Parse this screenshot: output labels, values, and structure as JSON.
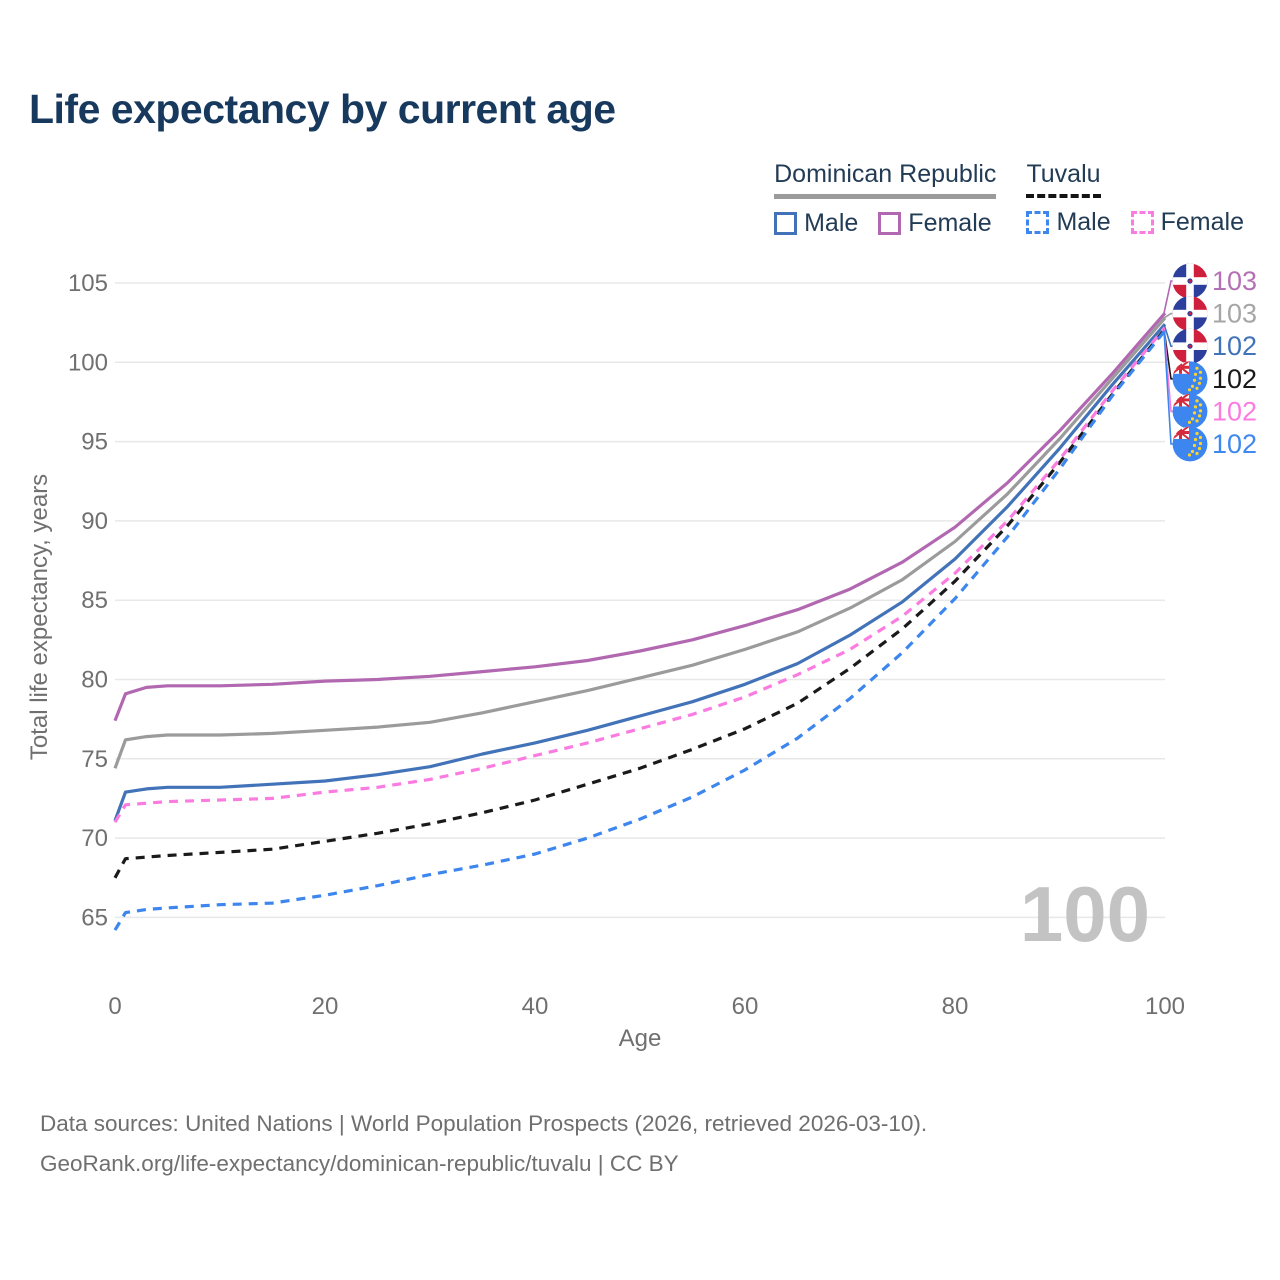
{
  "title": "Life expectancy by current age",
  "legend": {
    "groups": [
      {
        "country": "Dominican Republic",
        "line_style": "solid",
        "underline_color": "#9b9b9b",
        "items": [
          {
            "label": "Male",
            "color": "#4273b8"
          },
          {
            "label": "Female",
            "color": "#b168b1"
          }
        ]
      },
      {
        "country": "Tuvalu",
        "line_style": "dashed",
        "underline_color": "#141414",
        "items": [
          {
            "label": "Male",
            "color": "#3c86ee"
          },
          {
            "label": "Female",
            "color": "#fb7ce1"
          }
        ]
      }
    ]
  },
  "footer": {
    "line1": "Data sources: United Nations | World Population Prospects (2026, retrieved 2026-03-10).",
    "line2": "GeoRank.org/life-expectancy/dominican-republic/tuvalu | CC BY"
  },
  "chart_data": {
    "type": "line",
    "title": "Life expectancy by current age",
    "xlabel": "Age",
    "ylabel": "Total life expectancy, years",
    "xlim": [
      0,
      100
    ],
    "ylim": [
      65,
      105
    ],
    "xticks": [
      0,
      20,
      40,
      60,
      80,
      100
    ],
    "yticks": [
      65,
      70,
      75,
      80,
      85,
      90,
      95,
      100,
      105
    ],
    "grid": "horizontal",
    "legend_position": "top-right",
    "watermark": "100",
    "ages": [
      0,
      1,
      3,
      5,
      10,
      15,
      20,
      25,
      30,
      35,
      40,
      45,
      50,
      55,
      60,
      65,
      70,
      75,
      80,
      85,
      90,
      95,
      100
    ],
    "series": [
      {
        "name": "Dominican Republic Female",
        "color": "#b168b1",
        "dashed": false,
        "flag": "dominican-republic",
        "end_label": "103",
        "label_color": "#b470b4",
        "values": [
          77.4,
          79.1,
          79.5,
          79.6,
          79.6,
          79.7,
          79.9,
          80.0,
          80.2,
          80.5,
          80.8,
          81.2,
          81.8,
          82.5,
          83.4,
          84.4,
          85.7,
          87.4,
          89.6,
          92.4,
          95.7,
          99.3,
          103.1
        ]
      },
      {
        "name": "Dominican Republic Both sexes",
        "color": "#9b9b9b",
        "dashed": false,
        "flag": "dominican-republic",
        "end_label": "103",
        "label_color": "#a6a6a6",
        "values": [
          74.4,
          76.2,
          76.4,
          76.5,
          76.5,
          76.6,
          76.8,
          77.0,
          77.3,
          77.9,
          78.6,
          79.3,
          80.1,
          80.9,
          81.9,
          83.0,
          84.5,
          86.3,
          88.7,
          91.7,
          95.2,
          99.0,
          102.8
        ]
      },
      {
        "name": "Dominican Republic Male",
        "color": "#4273b8",
        "dashed": false,
        "flag": "dominican-republic",
        "end_label": "102",
        "label_color": "#4273b8",
        "values": [
          71.1,
          72.9,
          73.1,
          73.2,
          73.2,
          73.4,
          73.6,
          74.0,
          74.5,
          75.3,
          76.0,
          76.8,
          77.7,
          78.6,
          79.7,
          81.0,
          82.8,
          84.9,
          87.6,
          90.9,
          94.6,
          98.6,
          102.4
        ]
      },
      {
        "name": "Tuvalu Both sexes",
        "color": "#1a1a1a",
        "dashed": true,
        "flag": "tuvalu",
        "end_label": "102",
        "label_color": "#1a1a1a",
        "values": [
          67.5,
          68.7,
          68.8,
          68.9,
          69.1,
          69.3,
          69.8,
          70.3,
          70.9,
          71.6,
          72.4,
          73.4,
          74.4,
          75.6,
          76.9,
          78.5,
          80.7,
          83.2,
          86.2,
          89.7,
          93.7,
          98.0,
          102.1
        ]
      },
      {
        "name": "Tuvalu Female",
        "color": "#fb7ce1",
        "dashed": true,
        "flag": "tuvalu",
        "end_label": "102",
        "label_color": "#fb7ce1",
        "values": [
          71.0,
          72.1,
          72.2,
          72.3,
          72.4,
          72.5,
          72.9,
          73.2,
          73.7,
          74.4,
          75.2,
          76.0,
          76.9,
          77.8,
          78.9,
          80.3,
          81.9,
          84.0,
          86.7,
          90.0,
          93.9,
          98.2,
          102.2
        ]
      },
      {
        "name": "Tuvalu Male",
        "color": "#3c86ee",
        "dashed": true,
        "flag": "tuvalu",
        "end_label": "102",
        "label_color": "#3f88ef",
        "values": [
          64.2,
          65.3,
          65.5,
          65.6,
          65.8,
          65.9,
          66.4,
          67.0,
          67.7,
          68.3,
          69.0,
          70.0,
          71.2,
          72.6,
          74.3,
          76.3,
          78.8,
          81.7,
          85.1,
          89.0,
          93.3,
          97.9,
          102.0
        ]
      }
    ]
  }
}
